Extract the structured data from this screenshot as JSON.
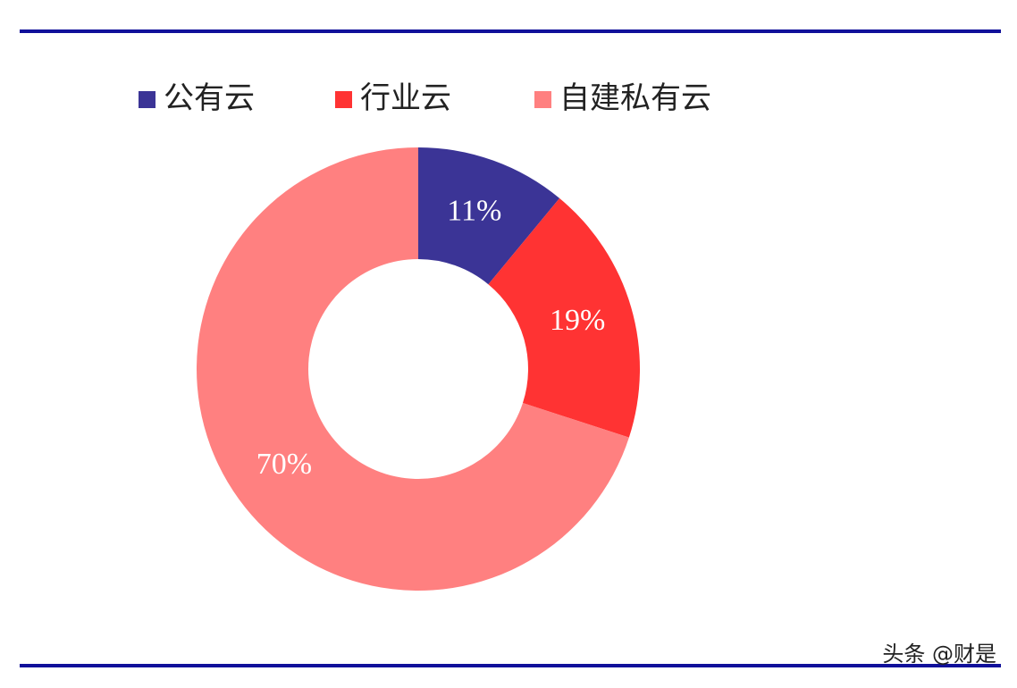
{
  "chart_data": {
    "type": "donut",
    "categories": [
      "公有云",
      "行业云",
      "自建私有云"
    ],
    "values": [
      11,
      19,
      70
    ],
    "value_labels": [
      "11%",
      "19%",
      "70%"
    ],
    "colors": [
      "#3b3496",
      "#ff3333",
      "#ff8080"
    ],
    "legend": "top"
  },
  "watermark": "头条 @财是"
}
